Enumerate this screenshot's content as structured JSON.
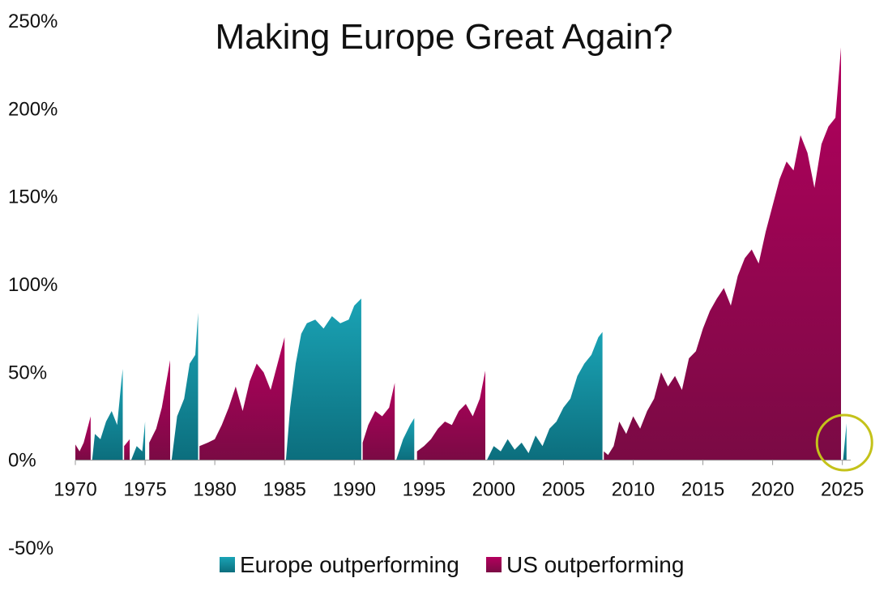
{
  "chart_data": {
    "type": "area",
    "title": "Making Europe Great Again?",
    "xlabel": "",
    "ylabel": "",
    "xlim": [
      1970,
      2025.6
    ],
    "ylim": [
      -50,
      250
    ],
    "grid": false,
    "legend_position": "bottom",
    "x_ticks": [
      "1970",
      "1975",
      "1980",
      "1985",
      "1990",
      "1995",
      "2000",
      "2005",
      "2010",
      "2015",
      "2020",
      "2025"
    ],
    "y_ticks": [
      "250%",
      "200%",
      "150%",
      "100%",
      "50%",
      "0%",
      "-50%"
    ],
    "colors": {
      "europe_top": "#1aa3b5",
      "europe_bottom": "#0c6e7d",
      "us_top": "#b3005e",
      "us_bottom": "#7a0a44",
      "highlight_circle": "#c4c21a"
    },
    "series": [
      {
        "name": "Europe outperforming",
        "segments": [
          {
            "x": [
              1971.2,
              1971.4,
              1971.8,
              1972.2,
              1972.6,
              1973.0,
              1973.3,
              1973.4
            ],
            "y": [
              0,
              15,
              12,
              22,
              28,
              20,
              45,
              52
            ]
          },
          {
            "x": [
              1974.0,
              1974.4,
              1974.8,
              1975.0
            ],
            "y": [
              0,
              8,
              5,
              22
            ]
          },
          {
            "x": [
              1976.9,
              1977.3,
              1977.8,
              1978.2,
              1978.6,
              1978.8
            ],
            "y": [
              0,
              25,
              35,
              55,
              60,
              84
            ]
          },
          {
            "x": [
              1985.1,
              1985.4,
              1985.8,
              1986.2,
              1986.6,
              1987.2,
              1987.8,
              1988.4,
              1989.0,
              1989.6,
              1990.0,
              1990.5
            ],
            "y": [
              0,
              30,
              55,
              72,
              78,
              80,
              75,
              82,
              78,
              80,
              88,
              92
            ]
          },
          {
            "x": [
              1993.0,
              1993.5,
              1994.0,
              1994.3
            ],
            "y": [
              0,
              12,
              20,
              24
            ]
          },
          {
            "x": [
              1999.5,
              2000.0,
              2000.5,
              2001.0,
              2001.5,
              2002.0,
              2002.5,
              2003.0,
              2003.5,
              2004.0,
              2004.5,
              2005.0,
              2005.5,
              2006.0,
              2006.5,
              2007.0,
              2007.5,
              2007.8
            ],
            "y": [
              0,
              8,
              5,
              12,
              6,
              10,
              4,
              14,
              8,
              18,
              22,
              30,
              35,
              48,
              55,
              60,
              70,
              73
            ]
          },
          {
            "x": [
              2025.05,
              2025.3
            ],
            "y": [
              0,
              21
            ]
          }
        ]
      },
      {
        "name": "US outperforming",
        "segments": [
          {
            "x": [
              1970.0,
              1970.3,
              1970.6,
              1971.0,
              1971.1
            ],
            "y": [
              9,
              5,
              10,
              22,
              25
            ]
          },
          {
            "x": [
              1973.5,
              1973.9
            ],
            "y": [
              8,
              12
            ]
          },
          {
            "x": [
              1975.3,
              1975.8,
              1976.2,
              1976.6,
              1976.8
            ],
            "y": [
              10,
              18,
              30,
              48,
              57
            ]
          },
          {
            "x": [
              1978.9,
              1979.5,
              1980.0,
              1980.5,
              1981.0,
              1981.5,
              1982.0,
              1982.5,
              1983.0,
              1983.5,
              1984.0,
              1984.5,
              1985.0
            ],
            "y": [
              8,
              10,
              12,
              20,
              30,
              42,
              28,
              45,
              55,
              50,
              40,
              55,
              70
            ]
          },
          {
            "x": [
              1990.6,
              1991.0,
              1991.5,
              1992.0,
              1992.5,
              1992.9
            ],
            "y": [
              10,
              20,
              28,
              25,
              30,
              44
            ]
          },
          {
            "x": [
              1994.5,
              1995.0,
              1995.5,
              1996.0,
              1996.5,
              1997.0,
              1997.5,
              1998.0,
              1998.5,
              1999.0,
              1999.4
            ],
            "y": [
              5,
              8,
              12,
              18,
              22,
              20,
              28,
              32,
              25,
              35,
              51
            ]
          },
          {
            "x": [
              2007.9,
              2008.2,
              2008.6,
              2009.0,
              2009.5,
              2010.0,
              2010.5,
              2011.0,
              2011.5,
              2012.0,
              2012.5,
              2013.0,
              2013.5,
              2014.0,
              2014.5,
              2015.0,
              2015.5,
              2016.0,
              2016.5,
              2017.0,
              2017.5,
              2018.0,
              2018.5,
              2019.0,
              2019.5,
              2020.0,
              2020.5,
              2021.0,
              2021.5,
              2022.0,
              2022.5,
              2023.0,
              2023.5,
              2024.0,
              2024.5,
              2024.9
            ],
            "y": [
              5,
              3,
              8,
              22,
              15,
              25,
              18,
              28,
              35,
              50,
              42,
              48,
              40,
              58,
              62,
              75,
              85,
              92,
              98,
              88,
              105,
              115,
              120,
              112,
              130,
              145,
              160,
              170,
              165,
              185,
              175,
              155,
              180,
              190,
              195,
              235
            ]
          }
        ]
      }
    ],
    "annotation": {
      "type": "circle",
      "x": 2025.15,
      "y": 10
    }
  }
}
